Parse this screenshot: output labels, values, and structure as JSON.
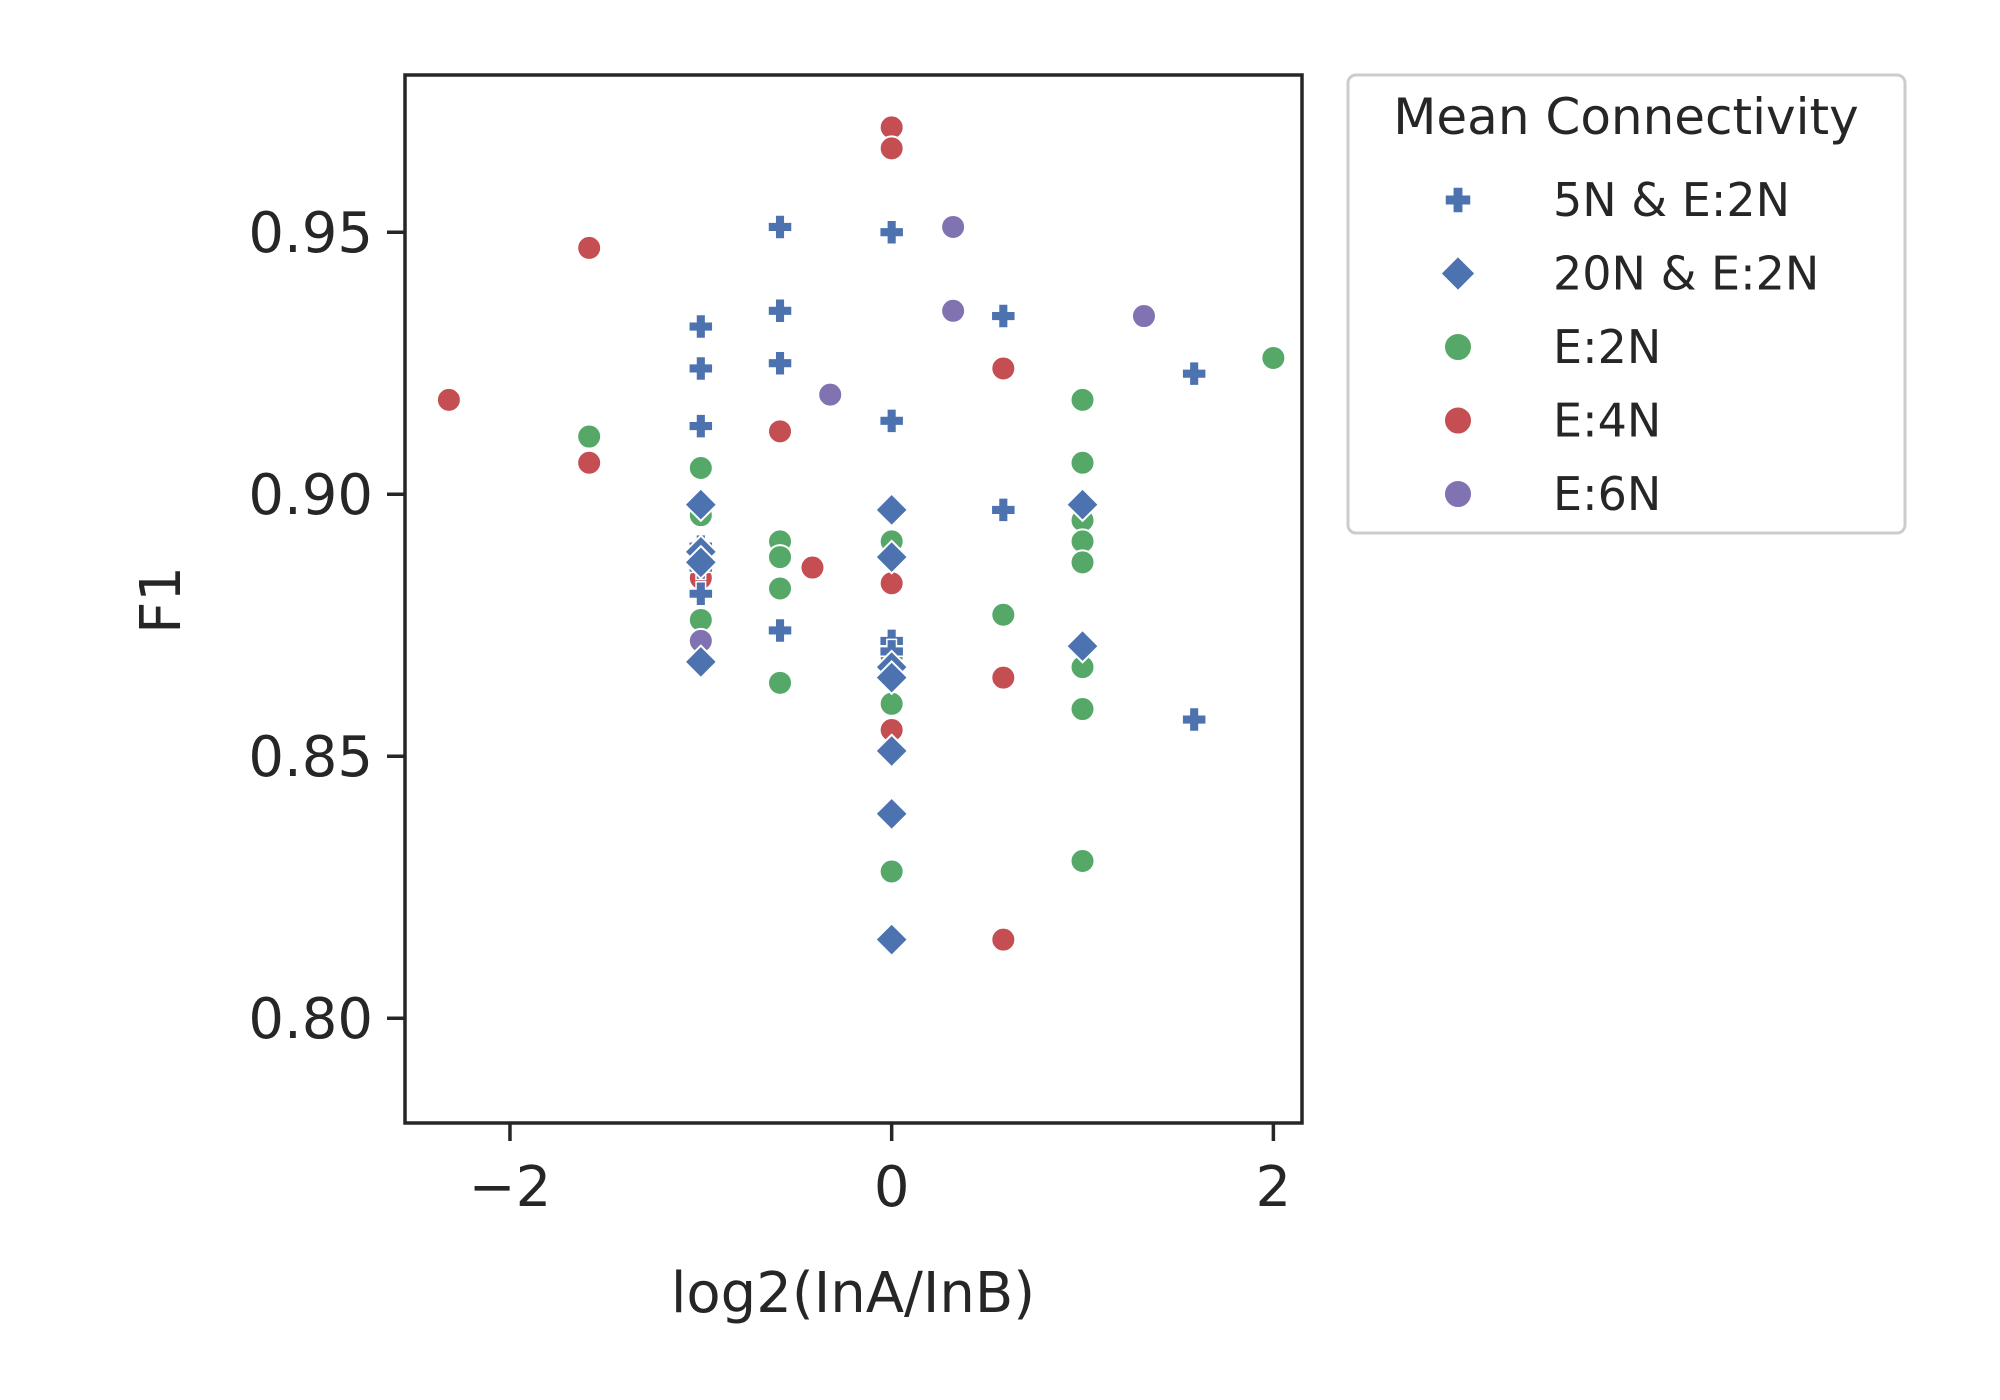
{
  "chart_data": {
    "type": "scatter",
    "xlabel": "log2(InA/InB)",
    "ylabel": "F1",
    "xlim": [
      -2.55,
      2.15
    ],
    "ylim": [
      0.78,
      0.98
    ],
    "xticks": [
      -2,
      0,
      2
    ],
    "yticks": [
      0.8,
      0.85,
      0.9,
      0.95
    ],
    "xtick_labels": [
      "−2",
      "0",
      "2"
    ],
    "ytick_labels": [
      "0.80",
      "0.85",
      "0.90",
      "0.95"
    ],
    "grid": false,
    "legend": {
      "title": "Mean Connectivity",
      "placement": "outside-upper-right"
    },
    "series": [
      {
        "name": "5N & E:2N",
        "marker": "plus",
        "color": "#4c72b0",
        "points": [
          [
            -1,
            0.932
          ],
          [
            -1,
            0.924
          ],
          [
            -1,
            0.913
          ],
          [
            -1,
            0.89
          ],
          [
            -1,
            0.886
          ],
          [
            -1,
            0.881
          ],
          [
            -0.585,
            0.951
          ],
          [
            -0.585,
            0.935
          ],
          [
            -0.585,
            0.925
          ],
          [
            -0.585,
            0.874
          ],
          [
            0,
            0.95
          ],
          [
            0,
            0.914
          ],
          [
            0,
            0.872
          ],
          [
            0,
            0.87
          ],
          [
            0,
            0.866
          ],
          [
            0.585,
            0.934
          ],
          [
            0.585,
            0.897
          ],
          [
            1.585,
            0.923
          ],
          [
            1.585,
            0.857
          ]
        ]
      },
      {
        "name": "20N & E:2N",
        "marker": "diamond",
        "color": "#4c72b0",
        "points": [
          [
            -1,
            0.898
          ],
          [
            -1,
            0.889
          ],
          [
            -1,
            0.887
          ],
          [
            -1,
            0.868
          ],
          [
            0,
            0.897
          ],
          [
            0,
            0.888
          ],
          [
            0,
            0.867
          ],
          [
            0,
            0.865
          ],
          [
            0,
            0.851
          ],
          [
            0,
            0.839
          ],
          [
            0,
            0.815
          ],
          [
            1,
            0.898
          ],
          [
            1,
            0.871
          ]
        ]
      },
      {
        "name": "E:2N",
        "marker": "circle",
        "color": "#55a868",
        "points": [
          [
            -1.585,
            0.911
          ],
          [
            -1,
            0.905
          ],
          [
            -1,
            0.896
          ],
          [
            -1,
            0.876
          ],
          [
            -0.585,
            0.891
          ],
          [
            -0.585,
            0.888
          ],
          [
            -0.585,
            0.882
          ],
          [
            -0.585,
            0.864
          ],
          [
            0,
            0.891
          ],
          [
            0,
            0.869
          ],
          [
            0,
            0.86
          ],
          [
            0,
            0.828
          ],
          [
            0.585,
            0.877
          ],
          [
            1,
            0.918
          ],
          [
            1,
            0.906
          ],
          [
            1,
            0.895
          ],
          [
            1,
            0.891
          ],
          [
            1,
            0.887
          ],
          [
            1,
            0.867
          ],
          [
            1,
            0.859
          ],
          [
            1,
            0.83
          ],
          [
            2,
            0.926
          ]
        ]
      },
      {
        "name": "E:4N",
        "marker": "circle",
        "color": "#c44e52",
        "points": [
          [
            -2.32,
            0.918
          ],
          [
            -1.585,
            0.947
          ],
          [
            -1.585,
            0.906
          ],
          [
            -1,
            0.884
          ],
          [
            -0.585,
            0.912
          ],
          [
            -0.415,
            0.886
          ],
          [
            0,
            0.97
          ],
          [
            0,
            0.966
          ],
          [
            0,
            0.883
          ],
          [
            0,
            0.855
          ],
          [
            0.585,
            0.924
          ],
          [
            0.585,
            0.865
          ],
          [
            0.585,
            0.815
          ]
        ]
      },
      {
        "name": "E:6N",
        "marker": "circle",
        "color": "#8172b2",
        "points": [
          [
            -1,
            0.872
          ],
          [
            -0.322,
            0.919
          ],
          [
            0.322,
            0.951
          ],
          [
            0.322,
            0.935
          ],
          [
            1.322,
            0.934
          ]
        ]
      }
    ]
  }
}
